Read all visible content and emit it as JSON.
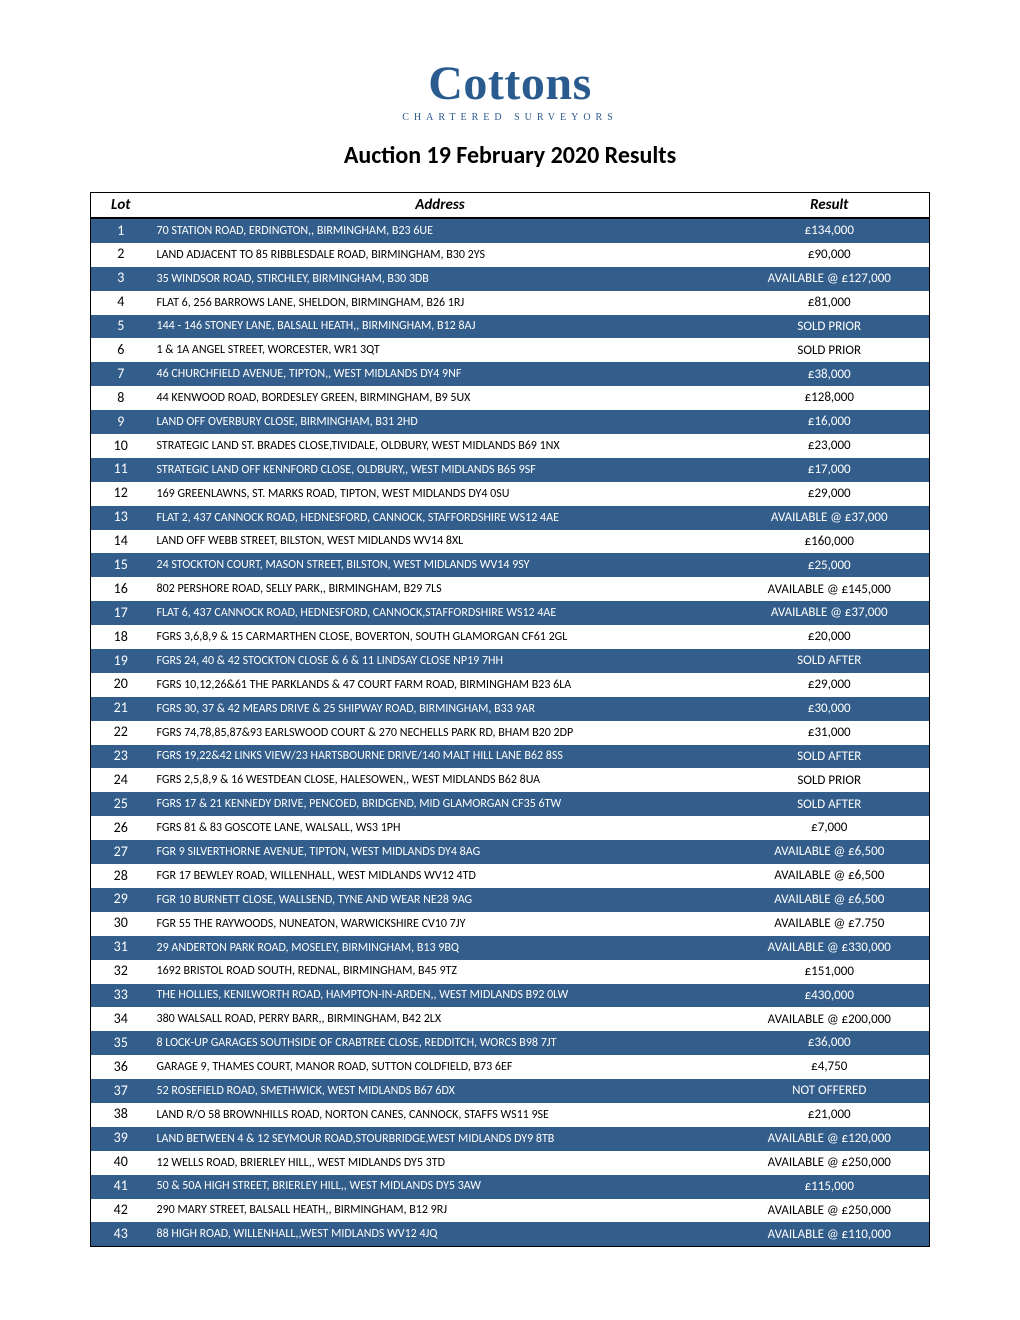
{
  "logo": {
    "main": "Cottons",
    "sub": "CHARTERED SURVEYORS"
  },
  "title": "Auction 19 February 2020 Results",
  "columns": {
    "lot": "Lot",
    "address": "Address",
    "result": "Result"
  },
  "colors": {
    "brand": "#2a5b8f",
    "row_odd_bg": "#335d8a",
    "row_odd_fg": "#ffffff",
    "row_even_bg": "#ffffff",
    "row_even_fg": "#000000"
  },
  "rows": [
    {
      "lot": "1",
      "address": "70 STATION ROAD, ERDINGTON,, BIRMINGHAM,   B23 6UE",
      "result": "£134,000"
    },
    {
      "lot": "2",
      "address": "LAND ADJACENT TO 85 RIBBLESDALE ROAD, BIRMINGHAM,   B30 2YS",
      "result": "£90,000"
    },
    {
      "lot": "3",
      "address": "35 WINDSOR ROAD, STIRCHLEY, BIRMINGHAM,   B30 3DB",
      "result": "AVAILABLE @ £127,000"
    },
    {
      "lot": "4",
      "address": "FLAT 6, 256 BARROWS LANE, SHELDON, BIRMINGHAM,   B26 1RJ",
      "result": "£81,000"
    },
    {
      "lot": "5",
      "address": "144 - 146 STONEY LANE, BALSALL HEATH,, BIRMINGHAM,   B12 8AJ",
      "result": "SOLD PRIOR"
    },
    {
      "lot": "6",
      "address": "1 & 1A ANGEL STREET, WORCESTER,   WR1 3QT",
      "result": "SOLD PRIOR"
    },
    {
      "lot": "7",
      "address": "46 CHURCHFIELD AVENUE, TIPTON,, WEST MIDLANDS   DY4 9NF",
      "result": "£38,000"
    },
    {
      "lot": "8",
      "address": "44 KENWOOD ROAD, BORDESLEY GREEN, BIRMINGHAM,   B9 5UX",
      "result": "£128,000"
    },
    {
      "lot": "9",
      "address": "LAND OFF OVERBURY CLOSE, BIRMINGHAM,   B31 2HD",
      "result": "£16,000"
    },
    {
      "lot": "10",
      "address": "STRATEGIC LAND ST. BRADES CLOSE,TIVIDALE, OLDBURY, WEST MIDLANDS   B69 1NX",
      "result": "£23,000"
    },
    {
      "lot": "11",
      "address": "STRATEGIC LAND OFF KENNFORD CLOSE, OLDBURY,, WEST MIDLANDS   B65 9SF",
      "result": "£17,000"
    },
    {
      "lot": "12",
      "address": "169 GREENLAWNS, ST. MARKS ROAD, TIPTON, WEST MIDLANDS   DY4 0SU",
      "result": "£29,000"
    },
    {
      "lot": "13",
      "address": "FLAT 2, 437 CANNOCK ROAD, HEDNESFORD, CANNOCK, STAFFORDSHIRE   WS12 4AE",
      "result": "AVAILABLE @ £37,000"
    },
    {
      "lot": "14",
      "address": "LAND OFF WEBB STREET, BILSTON, WEST MIDLANDS   WV14 8XL",
      "result": "£160,000"
    },
    {
      "lot": "15",
      "address": "24 STOCKTON COURT, MASON STREET, BILSTON, WEST MIDLANDS   WV14 9SY",
      "result": "£25,000"
    },
    {
      "lot": "16",
      "address": "802 PERSHORE ROAD, SELLY PARK,, BIRMINGHAM,   B29 7LS",
      "result": "AVAILABLE @ £145,000"
    },
    {
      "lot": "17",
      "address": "FLAT 6, 437 CANNOCK ROAD, HEDNESFORD, CANNOCK,STAFFORDSHIRE   WS12 4AE",
      "result": "AVAILABLE @ £37,000"
    },
    {
      "lot": "18",
      "address": "FGRS 3,6,8,9 & 15 CARMARTHEN CLOSE, BOVERTON, SOUTH GLAMORGAN   CF61 2GL",
      "result": "£20,000"
    },
    {
      "lot": "19",
      "address": "FGRS 24, 40 & 42 STOCKTON CLOSE & 6 & 11 LINDSAY CLOSE   NP19 7HH",
      "result": "SOLD AFTER"
    },
    {
      "lot": "20",
      "address": "FGRS 10,12,26&61 THE PARKLANDS & 47 COURT FARM ROAD, BIRMINGHAM   B23 6LA",
      "result": "£29,000"
    },
    {
      "lot": "21",
      "address": "FGRS 30, 37 & 42 MEARS DRIVE & 25 SHIPWAY ROAD, BIRMINGHAM,   B33 9AR",
      "result": "£30,000"
    },
    {
      "lot": "22",
      "address": "FGRS 74,78,85,87&93 EARLSWOOD COURT & 270 NECHELLS PARK RD, BHAM   B20 2DP",
      "result": "£31,000"
    },
    {
      "lot": "23",
      "address": "FGRS 19,22&42 LINKS VIEW/23 HARTSBOURNE DRIVE/140 MALT HILL LANE   B62 8SS",
      "result": "SOLD AFTER"
    },
    {
      "lot": "24",
      "address": "FGRS 2,5,8,9 & 16 WESTDEAN CLOSE, HALESOWEN,, WEST MIDLANDS   B62 8UA",
      "result": "SOLD PRIOR"
    },
    {
      "lot": "25",
      "address": "FGRS 17 & 21 KENNEDY DRIVE, PENCOED, BRIDGEND, MID GLAMORGAN   CF35 6TW",
      "result": "SOLD AFTER"
    },
    {
      "lot": "26",
      "address": "FGRS 81 & 83 GOSCOTE LANE, WALSALL,   WS3 1PH",
      "result": "£7,000"
    },
    {
      "lot": "27",
      "address": "FGR 9 SILVERTHORNE AVENUE, TIPTON, WEST MIDLANDS   DY4 8AG",
      "result": "AVAILABLE @ £6,500"
    },
    {
      "lot": "28",
      "address": "FGR 17 BEWLEY ROAD, WILLENHALL, WEST MIDLANDS   WV12 4TD",
      "result": "AVAILABLE @ £6,500"
    },
    {
      "lot": "29",
      "address": "FGR 10 BURNETT CLOSE, WALLSEND, TYNE AND WEAR   NE28 9AG",
      "result": "AVAILABLE @ £6,500"
    },
    {
      "lot": "30",
      "address": "FGR 55 THE RAYWOODS, NUNEATON, WARWICKSHIRE   CV10 7JY",
      "result": "AVAILABLE @ £7.750"
    },
    {
      "lot": "31",
      "address": "29 ANDERTON PARK ROAD, MOSELEY, BIRMINGHAM,   B13 9BQ",
      "result": "AVAILABLE @ £330,000"
    },
    {
      "lot": "32",
      "address": "1692 BRISTOL ROAD SOUTH, REDNAL, BIRMINGHAM,   B45 9TZ",
      "result": "£151,000"
    },
    {
      "lot": "33",
      "address": "THE HOLLIES, KENILWORTH ROAD, HAMPTON-IN-ARDEN,, WEST MIDLANDS   B92 0LW",
      "result": "£430,000"
    },
    {
      "lot": "34",
      "address": "380 WALSALL ROAD, PERRY BARR,, BIRMINGHAM,   B42 2LX",
      "result": "AVAILABLE @ £200,000"
    },
    {
      "lot": "35",
      "address": "8 LOCK-UP GARAGES SOUTHSIDE OF CRABTREE CLOSE, REDDITCH, WORCS   B98 7JT",
      "result": "£36,000"
    },
    {
      "lot": "36",
      "address": "GARAGE 9, THAMES COURT, MANOR ROAD, SUTTON COLDFIELD,   B73 6EF",
      "result": "£4,750"
    },
    {
      "lot": "37",
      "address": "52 ROSEFIELD ROAD, SMETHWICK, WEST MIDLANDS   B67 6DX",
      "result": "NOT OFFERED"
    },
    {
      "lot": "38",
      "address": "LAND R/O 58 BROWNHILLS ROAD, NORTON CANES, CANNOCK, STAFFS   WS11 9SE",
      "result": "£21,000"
    },
    {
      "lot": "39",
      "address": "LAND BETWEEN 4 & 12 SEYMOUR ROAD,STOURBRIDGE,WEST MIDLANDS   DY9 8TB",
      "result": "AVAILABLE @ £120,000"
    },
    {
      "lot": "40",
      "address": "12 WELLS ROAD, BRIERLEY HILL,, WEST MIDLANDS   DY5 3TD",
      "result": "AVAILABLE @ £250,000"
    },
    {
      "lot": "41",
      "address": "50 & 50A HIGH STREET, BRIERLEY HILL,, WEST MIDLANDS   DY5 3AW",
      "result": "£115,000"
    },
    {
      "lot": "42",
      "address": "290 MARY STREET, BALSALL HEATH,, BIRMINGHAM,   B12 9RJ",
      "result": "AVAILABLE @ £250,000"
    },
    {
      "lot": "43",
      "address": "88 HIGH ROAD, WILLENHALL,,WEST MIDLANDS   WV12 4JQ",
      "result": "AVAILABLE @ £110,000"
    }
  ]
}
